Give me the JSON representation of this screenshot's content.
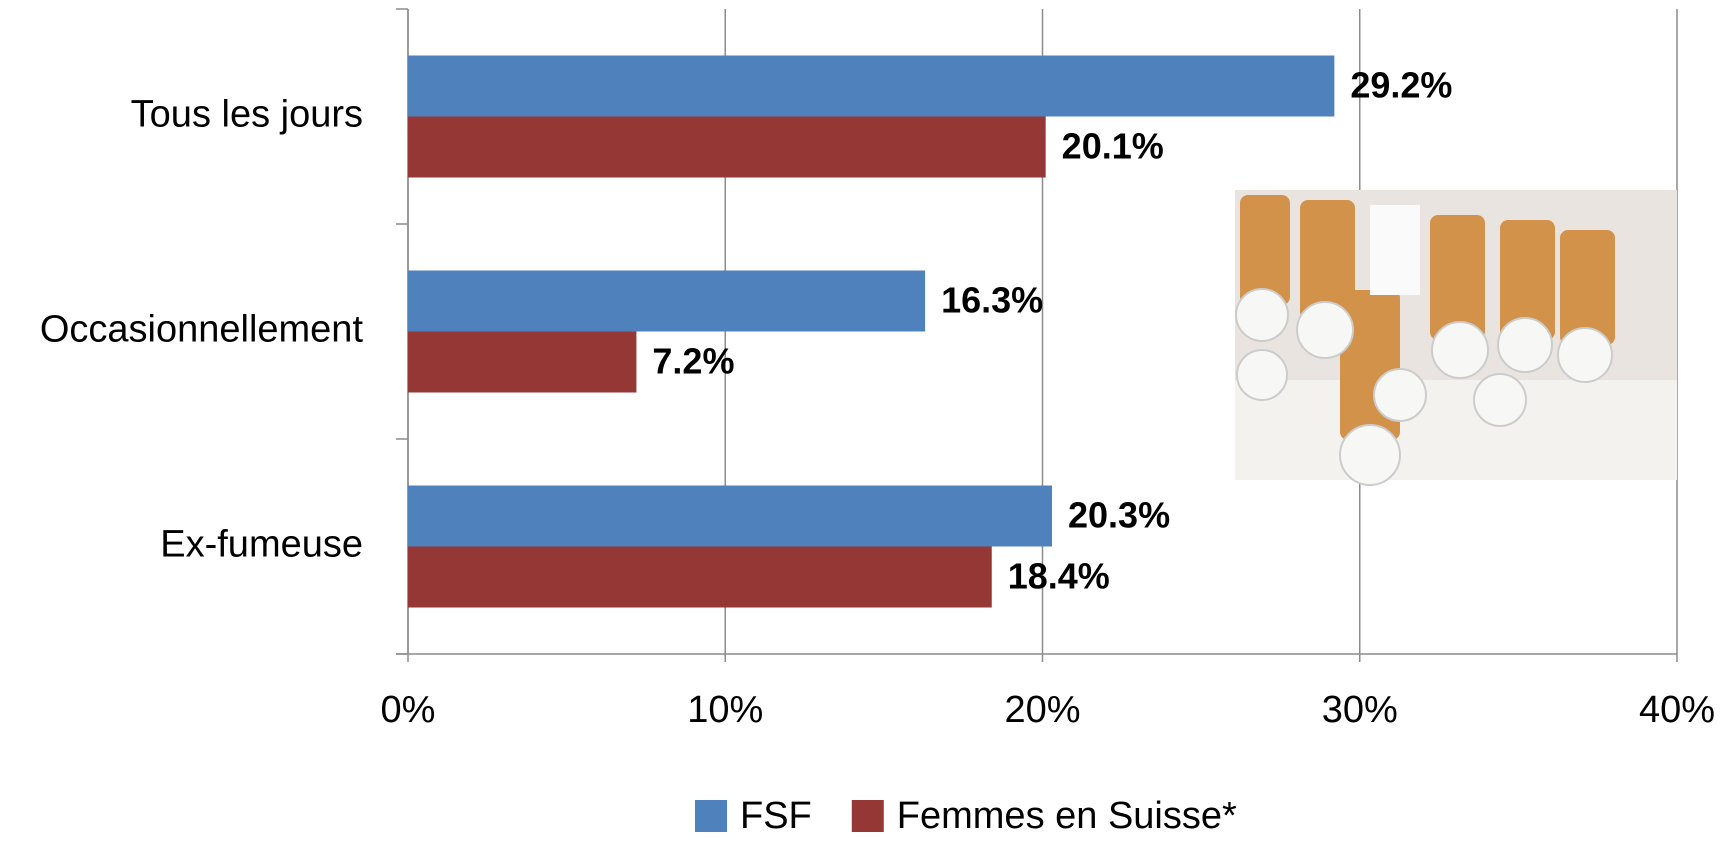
{
  "chart_data": {
    "type": "bar",
    "orientation": "horizontal",
    "categories": [
      "Tous les jours",
      "Occasionnellement",
      "Ex-fumeuse"
    ],
    "series": [
      {
        "name": "FSF",
        "color": "#4f81bd",
        "values": [
          29.2,
          16.3,
          20.3
        ],
        "value_labels": [
          "29.2%",
          "16.3%",
          "20.3%"
        ]
      },
      {
        "name": "Femmes en Suisse*",
        "color": "#953735",
        "values": [
          20.1,
          7.2,
          18.4
        ],
        "value_labels": [
          "20.1%",
          "7.2%",
          "18.4%"
        ]
      }
    ],
    "xlim": [
      0,
      40
    ],
    "xticks": [
      {
        "value": 0,
        "label": "0%"
      },
      {
        "value": 10,
        "label": "10%"
      },
      {
        "value": 20,
        "label": "20%"
      },
      {
        "value": 30,
        "label": "30%"
      },
      {
        "value": 40,
        "label": "40%"
      }
    ],
    "grid": true,
    "legend": "bottom"
  }
}
